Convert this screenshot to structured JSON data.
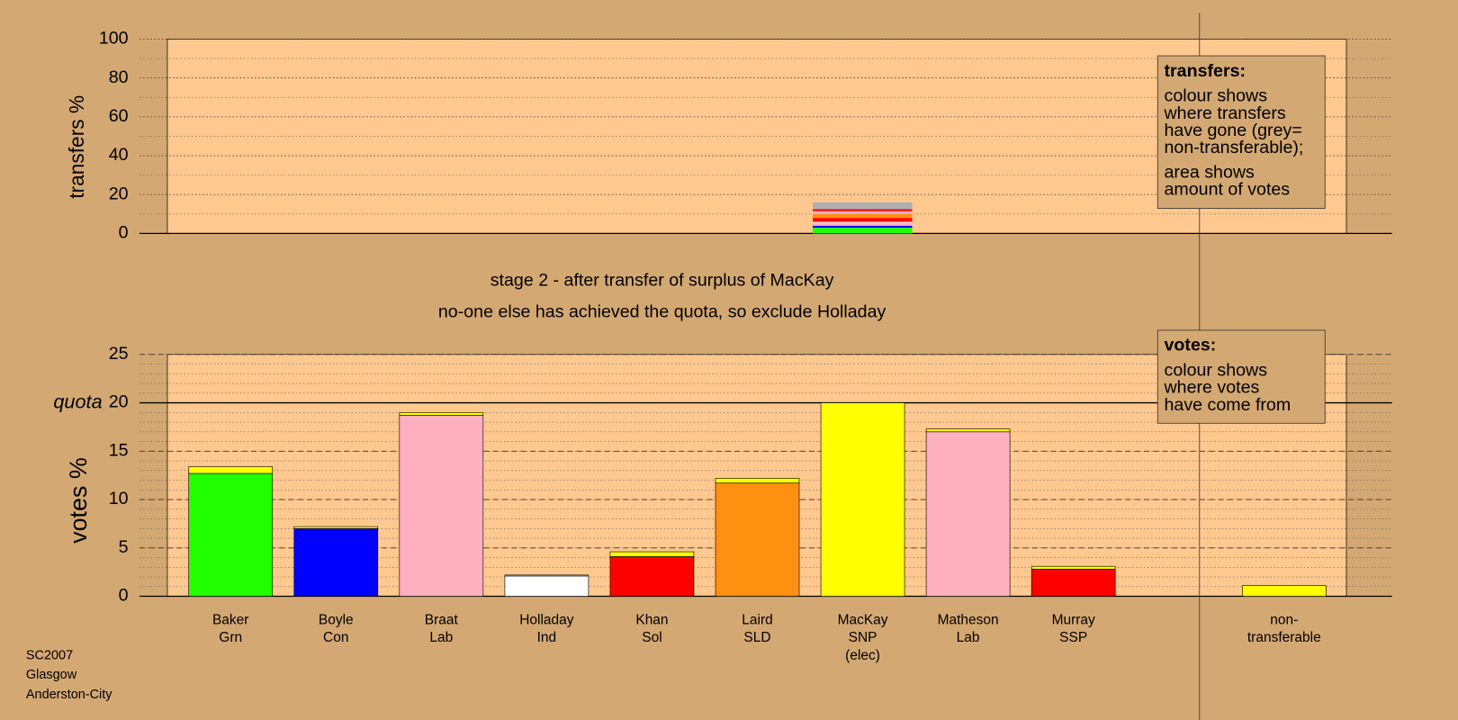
{
  "chart_data": [
    {
      "type": "stacked-column",
      "ylabel": "transfers %",
      "ylim": [
        0,
        100
      ],
      "yticks": [
        0,
        20,
        40,
        60,
        80,
        100
      ],
      "grid_minor": 10,
      "values": [
        3,
        1,
        1.5,
        0.5,
        2,
        2,
        1.5,
        1,
        3.5
      ],
      "colors": [
        "#22ff00",
        "#0000ff",
        "#ffb0c0",
        "#ffffff",
        "#ff0000",
        "#ff9010",
        "#ffb0c0",
        "#ff0000",
        "#b0b0b0"
      ],
      "legend": {
        "title": "transfers:",
        "lines": [
          "colour shows",
          "where transfers",
          "have gone (grey=",
          "non-transferable);"
        ],
        "lines2": [
          "area shows",
          "amount of votes"
        ]
      }
    },
    {
      "type": "stacked-bar",
      "title": "stage 2 - after transfer of surplus of MacKay",
      "subtitle": "no-one else has achieved the quota, so exclude Holladay",
      "ylabel": "votes %",
      "ylim": [
        0,
        25
      ],
      "yticks": [
        0,
        5,
        10,
        15,
        20,
        25
      ],
      "grid_minor": 1,
      "quota": {
        "value": 20,
        "label": "quota"
      },
      "categories": [
        [
          "Baker",
          "Grn"
        ],
        [
          "Boyle",
          "Con"
        ],
        [
          "Braat",
          "Lab"
        ],
        [
          "Holladay",
          "Ind"
        ],
        [
          "Khan",
          "Sol"
        ],
        [
          "Laird",
          "SLD"
        ],
        [
          "MacKay",
          "SNP",
          "(elec)"
        ],
        [
          "Matheson",
          "Lab"
        ],
        [
          "Murray",
          "SSP"
        ],
        null,
        [
          "non-",
          "transferable"
        ]
      ],
      "series": [
        {
          "colors": [
            "#22ff00",
            "#0000ff",
            "#ffb0c0",
            "#ffffff",
            "#ff0000",
            "#ff9010",
            "#ffff00",
            "#ffb0c0",
            "#ff0000",
            null,
            "#ffff00"
          ],
          "values": [
            12.7,
            7.0,
            18.7,
            2.1,
            4.1,
            11.7,
            20,
            17.0,
            2.8,
            null,
            0
          ]
        },
        {
          "color": "#ffff00",
          "values": [
            0.7,
            0.2,
            0.3,
            0.1,
            0.5,
            0.5,
            0,
            0.3,
            0.3,
            null,
            1.1
          ]
        }
      ],
      "legend": {
        "title": "votes:",
        "lines": [
          "colour shows",
          "where votes",
          "have come from"
        ]
      }
    }
  ],
  "footer": [
    "SC2007",
    "Glasgow",
    "Anderston-City"
  ]
}
